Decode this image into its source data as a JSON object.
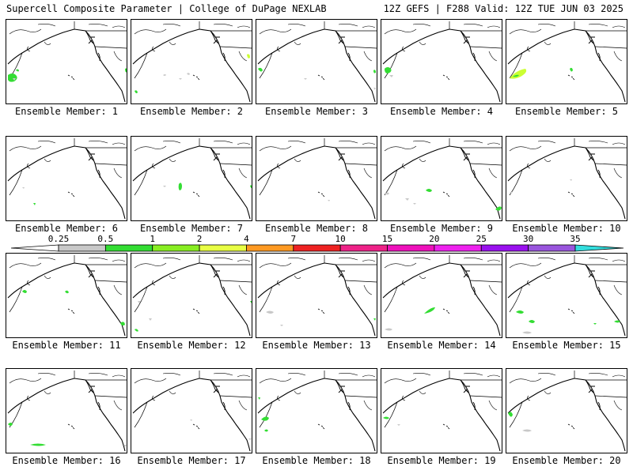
{
  "header": {
    "title_left": "Supercell Composite Parameter | College of DuPage NEXLAB",
    "title_right": "12Z GEFS | F288 Valid: 12Z TUE JUN 03 2025"
  },
  "colorbar": {
    "ticks": [
      "0.25",
      "0.5",
      "1",
      "2",
      "4",
      "7",
      "10",
      "15",
      "20",
      "25",
      "30",
      "35"
    ],
    "colors": [
      "#c8c8c8",
      "#33dd33",
      "#88ee22",
      "#e8ff44",
      "#ff9922",
      "#ee2222",
      "#ee2288",
      "#ee11bb",
      "#ee22ee",
      "#9911ee",
      "#9955dd",
      "#33dddd"
    ]
  },
  "member_label_prefix": "Ensemble Member: ",
  "members": [
    {
      "label": "Ensemble Member: 1"
    },
    {
      "label": "Ensemble Member: 2"
    },
    {
      "label": "Ensemble Member: 3"
    },
    {
      "label": "Ensemble Member: 4"
    },
    {
      "label": "Ensemble Member: 5"
    },
    {
      "label": "Ensemble Member: 6"
    },
    {
      "label": "Ensemble Member: 7"
    },
    {
      "label": "Ensemble Member: 8"
    },
    {
      "label": "Ensemble Member: 9"
    },
    {
      "label": "Ensemble Member: 10"
    },
    {
      "label": "Ensemble Member: 11"
    },
    {
      "label": "Ensemble Member: 12"
    },
    {
      "label": "Ensemble Member: 13"
    },
    {
      "label": "Ensemble Member: 14"
    },
    {
      "label": "Ensemble Member: 15"
    },
    {
      "label": "Ensemble Member: 16"
    },
    {
      "label": "Ensemble Member: 17"
    },
    {
      "label": "Ensemble Member: 18"
    },
    {
      "label": "Ensemble Member: 19"
    },
    {
      "label": "Ensemble Member: 20"
    }
  ]
}
